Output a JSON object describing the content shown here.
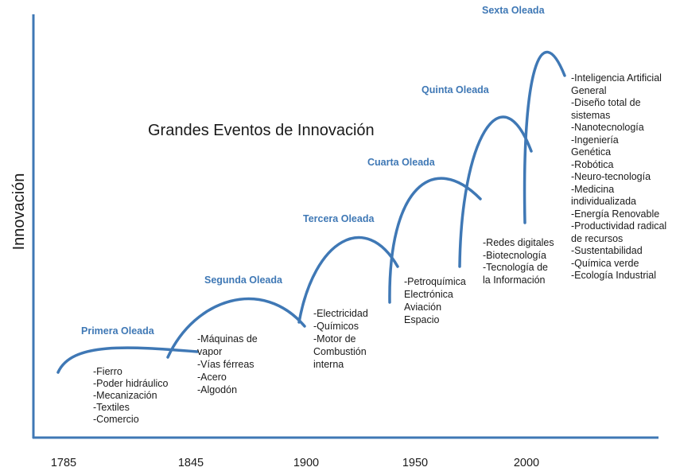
{
  "title": "Grandes Eventos de Innovación",
  "y_axis_label": "Innovación",
  "years": [
    "1785",
    "1845",
    "1900",
    "1950",
    "2000"
  ],
  "colors": {
    "wave": "#3f78b5",
    "axis": "#3f78b5",
    "label": "#3f78b5",
    "text": "#1a1a1a"
  },
  "waves": [
    {
      "name": "Primera Oleada",
      "events": [
        "-Fierro",
        "-Poder hidráulico",
        "-Mecanización",
        "-Textiles",
        "-Comercio"
      ]
    },
    {
      "name": "Segunda Oleada",
      "events": [
        "-Máquinas de vapor",
        "-Vías férreas",
        "-Acero",
        "-Algodón"
      ]
    },
    {
      "name": "Tercera Oleada",
      "events": [
        "-Electricidad",
        "-Químicos",
        "-Motor de Combustión interna"
      ]
    },
    {
      "name": "Cuarta Oleada",
      "events": [
        "-Petroquímica",
        "Electrónica",
        "Aviación",
        "Espacio"
      ]
    },
    {
      "name": "Quinta Oleada",
      "events": [
        "-Redes digitales",
        "-Biotecnología",
        "-Tecnología de la Información"
      ]
    },
    {
      "name": "Sexta Oleada",
      "events": [
        "-Inteligencia Artificial General",
        "-Diseño total de sistemas",
        "-Nanotecnología",
        "-Ingeniería Genética",
        "-Robótica",
        "-Neuro-tecnología",
        "-Medicina individualizada",
        "-Energía Renovable",
        "-Productividad radical de recursos",
        "-Sustentabilidad",
        "-Química verde",
        "-Ecología Industrial"
      ]
    }
  ]
}
